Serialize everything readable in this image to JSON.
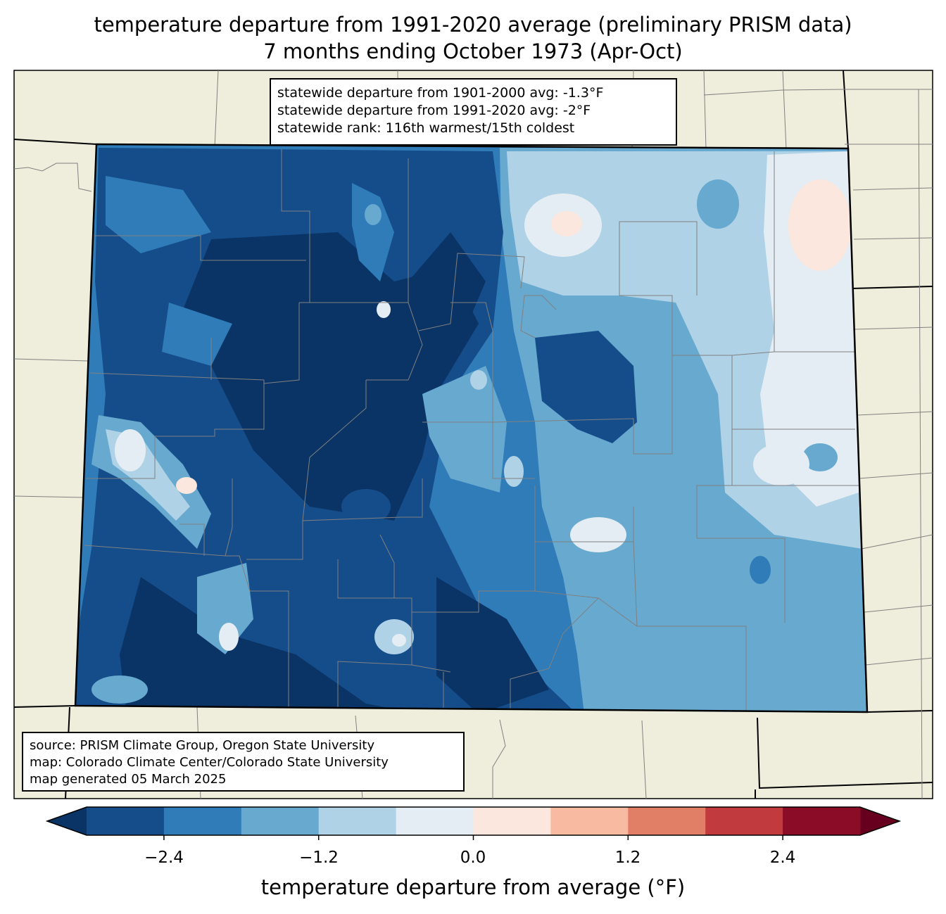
{
  "title_line1": "temperature departure from 1991-2020 average (preliminary PRISM data)",
  "title_line2": "7 months ending October 1973 (Apr-Oct)",
  "stats": {
    "line1": "statewide departure from 1901-2000 avg: -1.3°F",
    "line2": "statewide departure from 1991-2020 avg: -2°F",
    "line3": "statewide rank: 116th warmest/15th coldest"
  },
  "source": {
    "line1": "source: PRISM Climate Group, Oregon State University",
    "line2": "map: Colorado Climate Center/Colorado State University",
    "line3": "map generated 05 March 2025"
  },
  "colorbar": {
    "label": "temperature departure from average (°F)",
    "ticks": [
      "−2.4",
      "−1.2",
      "0.0",
      "1.2",
      "2.4"
    ],
    "bins": [
      {
        "from": -3.0,
        "to": -2.4,
        "color": "#154d8b"
      },
      {
        "from": -2.4,
        "to": -1.8,
        "color": "#2f7cb9"
      },
      {
        "from": -1.8,
        "to": -1.2,
        "color": "#67a9cf"
      },
      {
        "from": -1.2,
        "to": -0.6,
        "color": "#afd2e6"
      },
      {
        "from": -0.6,
        "to": 0.0,
        "color": "#e4edf3"
      },
      {
        "from": 0.0,
        "to": 0.6,
        "color": "#fbe7dd"
      },
      {
        "from": 0.6,
        "to": 1.2,
        "color": "#f8baa0"
      },
      {
        "from": 1.2,
        "to": 1.8,
        "color": "#e07f66"
      },
      {
        "from": 1.8,
        "to": 2.4,
        "color": "#c13a3d"
      },
      {
        "from": 2.4,
        "to": 3.0,
        "color": "#8a0c27"
      }
    ],
    "under_color": "#0a3466",
    "over_color": "#67001f"
  },
  "colors": {
    "land": "#efeedc",
    "county_lines": "#808080",
    "state_border": "#000000"
  }
}
